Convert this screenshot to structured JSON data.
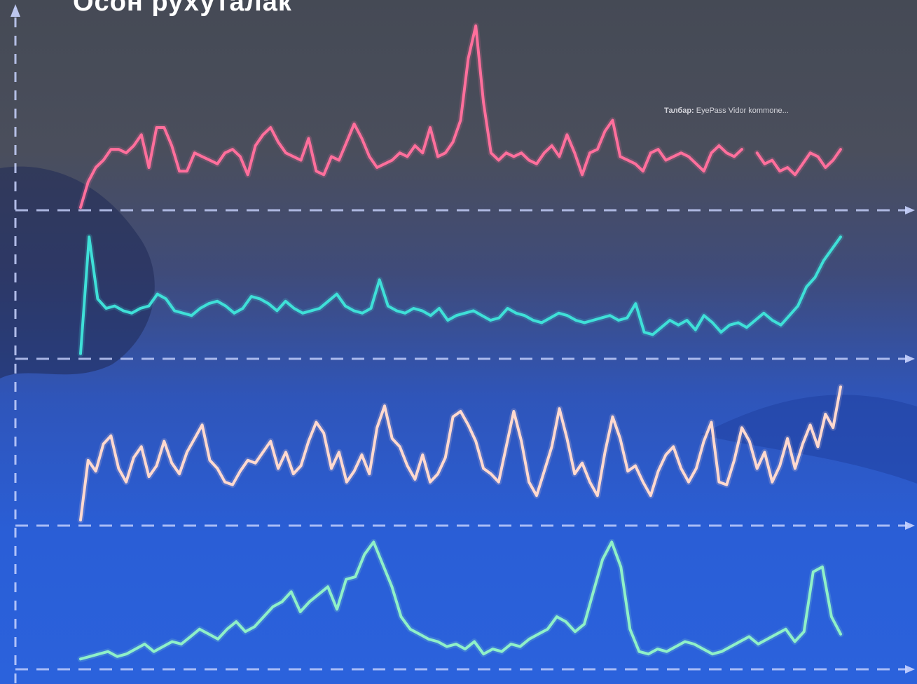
{
  "title": "Осон рухуталак",
  "annotation": {
    "label": "Талбар:",
    "text": "ЕуеРаss Vidor kommone..."
  },
  "colors": {
    "background_top": "#454a55",
    "background_bottom": "#2b62dc",
    "axis": "#c9d4ff",
    "series": [
      "#ff6f9c",
      "#3fe0d8",
      "#ffd9cf",
      "#8ff0c8"
    ]
  },
  "chart_data": {
    "type": "line",
    "panels": 4,
    "x_range": [
      0,
      100
    ],
    "grid": false,
    "legend": "top-right",
    "series": [
      {
        "values": [
          0,
          14,
          22,
          26,
          32,
          32,
          30,
          34,
          40,
          22,
          44,
          44,
          34,
          20,
          20,
          30,
          28,
          26,
          24,
          30,
          32,
          28,
          18,
          34,
          40,
          44,
          36,
          30,
          28,
          26,
          38,
          20,
          18,
          28,
          26,
          36,
          46,
          38,
          28,
          22,
          24,
          26,
          30,
          28,
          34,
          30,
          44,
          28,
          30,
          36,
          48,
          82,
          100,
          58,
          30,
          26,
          30,
          28,
          30,
          26,
          24,
          30,
          34,
          28,
          40,
          30,
          18,
          30,
          32,
          42,
          48,
          28,
          26,
          24,
          20,
          30,
          32,
          26,
          28,
          30,
          28,
          24,
          20,
          30,
          34,
          30,
          28,
          32,
          null,
          30,
          24,
          26,
          20,
          22,
          18,
          24,
          30,
          28,
          22,
          26,
          32
        ],
        "gaps": [
          [
            88,
            89
          ]
        ]
      },
      {
        "values": [
          2,
          100,
          48,
          40,
          42,
          38,
          36,
          40,
          42,
          52,
          48,
          38,
          36,
          34,
          40,
          44,
          46,
          42,
          36,
          40,
          50,
          48,
          44,
          38,
          46,
          40,
          36,
          38,
          40,
          46,
          52,
          42,
          38,
          36,
          40,
          64,
          42,
          38,
          36,
          40,
          38,
          34,
          40,
          30,
          34,
          36,
          38,
          34,
          30,
          32,
          40,
          36,
          34,
          30,
          28,
          32,
          36,
          34,
          30,
          28,
          30,
          32,
          34,
          30,
          32,
          44,
          20,
          18,
          24,
          30,
          26,
          30,
          22,
          34,
          28,
          20,
          26,
          28,
          24,
          30,
          36,
          30,
          26,
          34,
          42,
          58,
          66,
          80,
          90,
          100
        ]
      },
      {
        "values": [
          2,
          46,
          38,
          58,
          64,
          40,
          30,
          48,
          56,
          34,
          42,
          60,
          44,
          36,
          52,
          62,
          72,
          46,
          40,
          30,
          28,
          38,
          46,
          44,
          52,
          60,
          40,
          52,
          36,
          42,
          60,
          74,
          66,
          40,
          52,
          30,
          38,
          50,
          36,
          70,
          86,
          62,
          56,
          42,
          32,
          50,
          30,
          36,
          48,
          78,
          82,
          72,
          60,
          40,
          36,
          30,
          56,
          82,
          60,
          30,
          20,
          38,
          56,
          84,
          62,
          36,
          44,
          30,
          20,
          52,
          78,
          62,
          38,
          42,
          30,
          20,
          38,
          50,
          56,
          40,
          30,
          40,
          60,
          74,
          30,
          28,
          46,
          70,
          60,
          40,
          52,
          30,
          42,
          62,
          40,
          58,
          72,
          56,
          80,
          70,
          100
        ]
      },
      {
        "values": [
          6,
          8,
          10,
          12,
          8,
          10,
          14,
          18,
          12,
          16,
          20,
          18,
          24,
          30,
          26,
          22,
          30,
          36,
          28,
          32,
          40,
          48,
          52,
          60,
          44,
          52,
          58,
          64,
          46,
          70,
          72,
          90,
          100,
          82,
          64,
          40,
          30,
          26,
          22,
          20,
          16,
          18,
          14,
          20,
          10,
          14,
          12,
          18,
          16,
          22,
          26,
          30,
          40,
          36,
          28,
          34,
          60,
          86,
          100,
          80,
          30,
          12,
          10,
          14,
          12,
          16,
          20,
          18,
          14,
          10,
          12,
          16,
          20,
          24,
          18,
          22,
          26,
          30,
          20,
          28,
          76,
          80,
          40,
          26
        ]
      }
    ]
  }
}
